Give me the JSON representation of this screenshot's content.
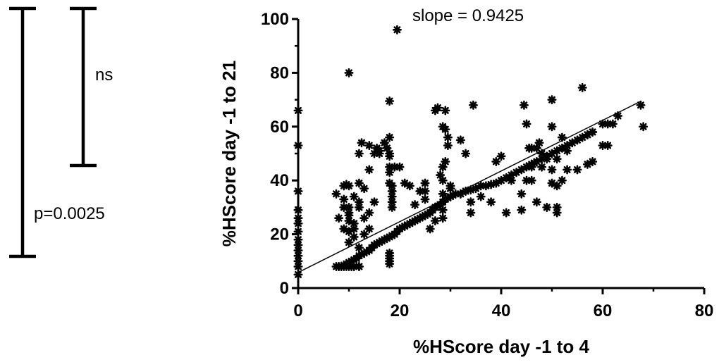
{
  "annotations": {
    "ns_label": "ns",
    "p_label": "p=0.0025",
    "slope_label": "slope = 0.9425"
  },
  "chart_data": {
    "type": "scatter",
    "title": "",
    "xlabel": "%HScore day -1 to 4",
    "ylabel": "%HScore day -1 to 21",
    "xlim": [
      0,
      80
    ],
    "ylim": [
      0,
      100
    ],
    "xticks": [
      "0",
      "20",
      "40",
      "60",
      "80"
    ],
    "yticks": [
      "0",
      "20",
      "40",
      "60",
      "80",
      "100"
    ],
    "grid": false,
    "legend": "none",
    "marker_color": "#000000",
    "regression": {
      "slope": 0.9425,
      "intercept": 5.8,
      "x_range": [
        0,
        67.5
      ]
    },
    "x": [
      0,
      0,
      0,
      0,
      0,
      0,
      0,
      0,
      0,
      0,
      0,
      0,
      0,
      0,
      7.5,
      8,
      8.5,
      9,
      9.5,
      10,
      10.5,
      11,
      11.5,
      12,
      12.5,
      13,
      13.5,
      14,
      14.5,
      15,
      15.5,
      16,
      16.5,
      17,
      17.5,
      18,
      18.5,
      19,
      19.5,
      20,
      20.5,
      21,
      21.5,
      22,
      22.5,
      23,
      23.5,
      24,
      24.5,
      25,
      25.5,
      26,
      26.5,
      27,
      27.5,
      28,
      28.5,
      29,
      29.5,
      30,
      30.5,
      31,
      32,
      33,
      34,
      35,
      36,
      37,
      38,
      39,
      40,
      41,
      42,
      43,
      44,
      45,
      45.5,
      46,
      46.5,
      47,
      48,
      49,
      50,
      51,
      52,
      53,
      54,
      55,
      56,
      57,
      58,
      7.5,
      8,
      9,
      9,
      10,
      10,
      10,
      11,
      11,
      12,
      12,
      13,
      13,
      14,
      14,
      15,
      8,
      8.5,
      9,
      9.5,
      10,
      10.5,
      11,
      11,
      12,
      12,
      9,
      9,
      10,
      10,
      10,
      10,
      11,
      11,
      12,
      12,
      13,
      14,
      18,
      18,
      18,
      18,
      18,
      18.5,
      18.5,
      18.5,
      18.5,
      18.5,
      18,
      18,
      18,
      18,
      18,
      18,
      18,
      16,
      17,
      17.5,
      19,
      20,
      21,
      22,
      23,
      24,
      25,
      25,
      25,
      26,
      27,
      28,
      28.5,
      28.5,
      28.5,
      28.5,
      29,
      29,
      29,
      29.5,
      29.5,
      30,
      30,
      32,
      33,
      34,
      36,
      38,
      39,
      40,
      42,
      44,
      45,
      46,
      46,
      47,
      48,
      49,
      50,
      51,
      52,
      53,
      9.5,
      10,
      12,
      12.5,
      14,
      15,
      15.5,
      16,
      19.5,
      27,
      27.5,
      28,
      28.5,
      34.5,
      44.5,
      45,
      45.5,
      47.5,
      50,
      51,
      56,
      57,
      58,
      60,
      61,
      62,
      63,
      67.5,
      68,
      46,
      48,
      50,
      50,
      51,
      52,
      53,
      55,
      57,
      58,
      60,
      61,
      28.5,
      32,
      34,
      41,
      44,
      47,
      49,
      51
    ],
    "y": [
      66,
      53,
      36,
      29,
      26,
      24,
      21,
      18,
      16,
      14,
      12,
      10,
      8,
      5,
      8,
      8,
      8,
      8.5,
      9,
      9.5,
      10,
      10.5,
      11,
      12,
      12.5,
      13,
      13.5,
      14,
      15,
      16,
      16.5,
      17,
      17.5,
      18,
      18.5,
      19,
      19.5,
      20,
      21,
      22,
      22.5,
      23,
      23.5,
      24,
      24.5,
      25,
      25.5,
      26,
      26.5,
      27,
      27.5,
      28,
      29,
      30,
      30.5,
      31,
      32,
      33,
      33.5,
      34,
      34.5,
      35,
      35,
      36,
      36.5,
      37,
      38,
      38,
      38.5,
      39,
      40,
      41,
      42,
      43,
      44,
      45,
      45.5,
      46,
      46.5,
      47,
      48,
      49,
      50,
      51,
      52,
      53,
      54,
      55,
      56,
      57,
      58,
      35,
      26,
      30,
      22,
      28,
      21,
      17,
      24,
      19,
      30,
      15,
      26,
      20,
      28,
      22,
      32,
      8,
      8,
      8,
      8,
      8,
      8,
      8,
      8,
      8,
      8,
      38,
      33,
      38,
      30,
      27,
      25,
      34,
      22,
      39,
      32,
      37,
      44,
      9,
      10,
      11,
      12,
      13,
      30,
      32,
      34,
      36,
      38,
      39,
      43,
      45,
      49,
      50,
      56,
      69.5,
      50,
      54,
      52,
      45,
      45,
      39,
      38,
      31,
      36,
      39,
      36,
      33,
      22,
      25,
      31,
      26,
      29,
      40,
      45,
      47,
      59,
      66,
      53,
      56,
      38,
      37,
      55,
      50,
      28,
      34,
      32,
      47,
      49,
      40,
      35,
      40,
      40,
      52,
      52,
      50,
      48,
      70,
      28,
      56,
      51,
      38.5,
      80,
      50,
      54,
      53,
      50,
      52,
      51,
      96,
      66,
      67,
      42,
      60,
      68,
      68,
      61,
      52,
      54,
      60,
      48,
      74.5,
      57,
      58,
      61,
      61,
      61,
      64,
      68,
      60,
      45,
      45,
      44,
      39,
      38,
      40,
      44,
      44,
      46,
      47,
      53,
      53,
      35,
      35,
      32,
      28,
      29,
      32,
      30,
      30
    ]
  }
}
